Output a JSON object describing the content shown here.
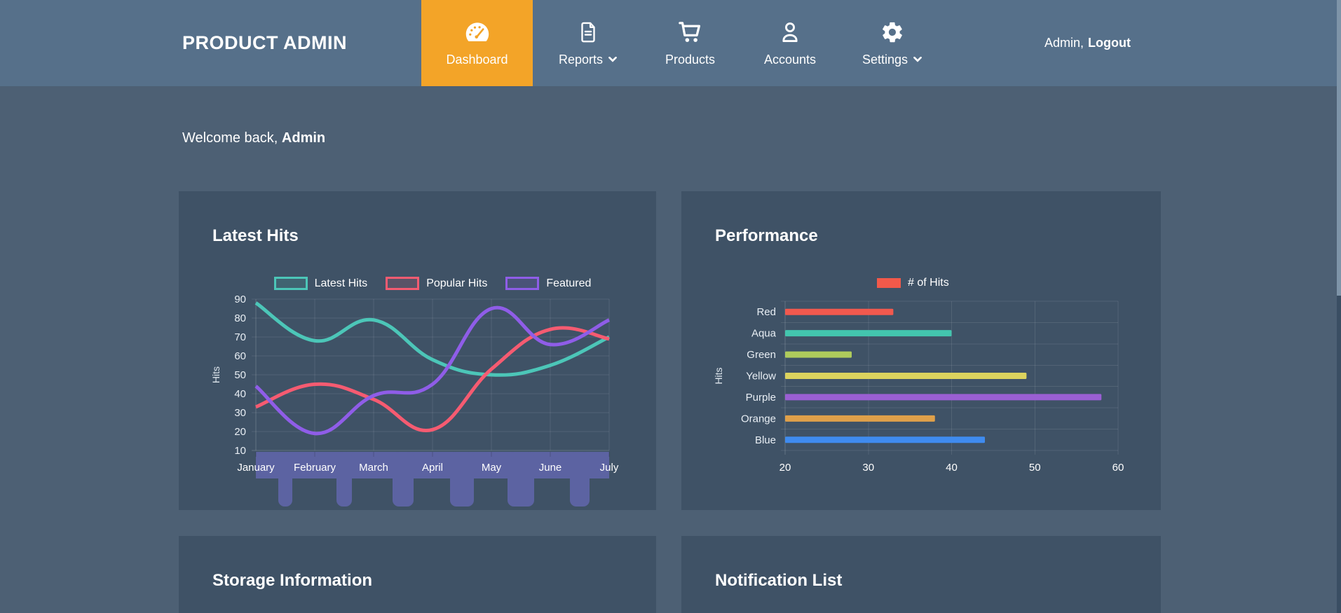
{
  "header": {
    "brand": "PRODUCT ADMIN",
    "nav": [
      {
        "label": "Dashboard",
        "icon": "gauge-icon",
        "active": true
      },
      {
        "label": "Reports",
        "icon": "file-icon",
        "dropdown": true
      },
      {
        "label": "Products",
        "icon": "cart-icon"
      },
      {
        "label": "Accounts",
        "icon": "person-icon"
      },
      {
        "label": "Settings",
        "icon": "gear-icon",
        "dropdown": true
      }
    ],
    "user": {
      "name": "Admin,",
      "logout": "Logout"
    }
  },
  "welcome": {
    "prefix": "Welcome back, ",
    "name": "Admin"
  },
  "panels": {
    "latest_hits": {
      "title": "Latest Hits"
    },
    "performance": {
      "title": "Performance"
    },
    "storage": {
      "title": "Storage Information"
    },
    "notifications": {
      "title": "Notification List"
    }
  },
  "colors": {
    "header_bg": "#56708A",
    "body_bg": "#4D6074",
    "panel_bg": "#3F5266",
    "active_tab": "#F3A428",
    "text": "#FFFFFF"
  },
  "chart_data": [
    {
      "id": "latest-hits",
      "type": "line",
      "title": "Latest Hits",
      "categories": [
        "January",
        "February",
        "March",
        "April",
        "May",
        "June",
        "July"
      ],
      "series": [
        {
          "name": "Latest Hits",
          "color": "#4CC6B8",
          "values": [
            88,
            68,
            79,
            58,
            50,
            55,
            70
          ]
        },
        {
          "name": "Popular Hits",
          "color": "#F65B71",
          "values": [
            33,
            45,
            37,
            21,
            53,
            74,
            69
          ]
        },
        {
          "name": "Featured",
          "color": "#8F5DE8",
          "values": [
            44,
            19,
            39,
            45,
            85,
            66,
            79
          ]
        }
      ],
      "xlabel": "",
      "ylabel": "Hits",
      "ylim": [
        10,
        90
      ],
      "yticks": [
        10,
        20,
        30,
        40,
        50,
        60,
        70,
        80,
        90
      ],
      "legend_position": "top",
      "grid": true,
      "overflow_bar_color": "#5C63A2"
    },
    {
      "id": "performance",
      "type": "bar",
      "orientation": "horizontal",
      "title": "Performance",
      "legend": "# of Hits",
      "legend_color": "#F2594A",
      "categories": [
        "Red",
        "Aqua",
        "Green",
        "Yellow",
        "Purple",
        "Orange",
        "Blue"
      ],
      "values": [
        33,
        40,
        28,
        49,
        58,
        38,
        44
      ],
      "bar_colors": [
        "#F2594E",
        "#43C5AE",
        "#AFCB5C",
        "#DCD35E",
        "#9A5FD3",
        "#DFA04A",
        "#3F8BEF"
      ],
      "xlabel": "",
      "ylabel": "Hits",
      "xlim": [
        20,
        60
      ],
      "xticks": [
        20,
        30,
        40,
        50,
        60
      ],
      "legend_position": "top",
      "grid": true
    }
  ]
}
